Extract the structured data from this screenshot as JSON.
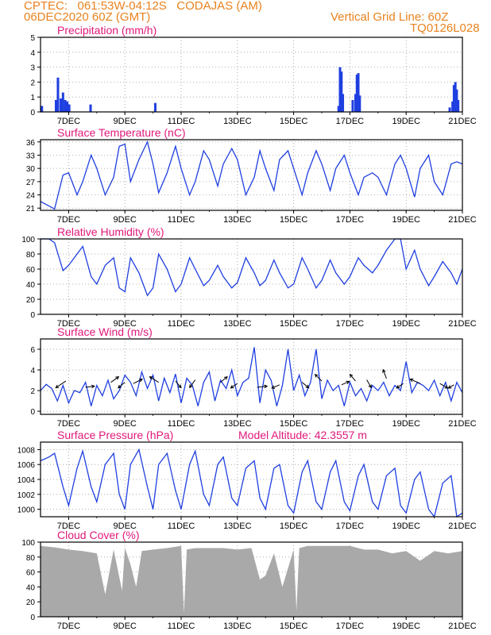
{
  "header": {
    "line1": "CPTEC:   061:53W-04:12S   CODAJAS (AM)",
    "line2": "06DEC2020 60Z (GMT)",
    "grid_note": "Vertical Grid Line: 60Z",
    "code": "TQ0126L028"
  },
  "colors": {
    "header": "#e8821e",
    "title": "#e0187a",
    "series": "#1f3fe0",
    "cloud": "#a9a9a9",
    "arrow": "#000000"
  },
  "x_axis": {
    "start_day": 6.0,
    "end_day": 21.0,
    "tick_labels": [
      "7DEC",
      "9DEC",
      "11DEC",
      "13DEC",
      "15DEC",
      "17DEC",
      "19DEC",
      "21DEC"
    ],
    "tick_days": [
      7,
      9,
      11,
      13,
      15,
      17,
      19,
      21
    ]
  },
  "chart_data": [
    {
      "type": "bar",
      "title": "Precipitation (mm/h)",
      "ylim": [
        0,
        5
      ],
      "yticks": [
        0,
        1,
        2,
        3,
        4,
        5
      ],
      "x": [
        6.05,
        6.55,
        6.62,
        6.72,
        6.8,
        6.88,
        6.95,
        7.02,
        7.78,
        10.08,
        16.6,
        16.65,
        16.7,
        16.75,
        17.1,
        17.2,
        17.25,
        17.3,
        17.35,
        20.55,
        20.65,
        20.7,
        20.75,
        20.8,
        20.85
      ],
      "values": [
        0.4,
        0.8,
        2.3,
        0.9,
        1.3,
        0.8,
        0.7,
        0.5,
        0.5,
        0.6,
        0.4,
        3.0,
        2.7,
        1.2,
        0.8,
        1.2,
        2.5,
        2.6,
        1.1,
        0.3,
        0.7,
        1.8,
        2.0,
        1.5,
        0.8
      ]
    },
    {
      "type": "line",
      "title": "Surface Temperature (nC)",
      "ylim": [
        20.5,
        36.5
      ],
      "yticks": [
        21,
        24,
        27,
        30,
        33,
        36
      ],
      "x": [
        6.0,
        6.3,
        6.5,
        6.8,
        7.0,
        7.3,
        7.5,
        7.8,
        8.0,
        8.3,
        8.6,
        8.8,
        9.0,
        9.2,
        9.5,
        9.8,
        10.0,
        10.2,
        10.5,
        10.8,
        11.0,
        11.3,
        11.5,
        11.8,
        12.0,
        12.3,
        12.5,
        12.8,
        13.0,
        13.3,
        13.6,
        13.8,
        14.0,
        14.3,
        14.5,
        14.8,
        15.0,
        15.3,
        15.5,
        15.8,
        16.0,
        16.3,
        16.5,
        16.8,
        17.0,
        17.3,
        17.5,
        17.8,
        18.0,
        18.3,
        18.6,
        18.8,
        19.0,
        19.3,
        19.5,
        19.8,
        20.0,
        20.3,
        20.6,
        20.8,
        21.0
      ],
      "values": [
        22.5,
        21.5,
        20.8,
        28.5,
        29.0,
        24.0,
        27.0,
        33.0,
        30.0,
        24.0,
        28.0,
        35.0,
        35.5,
        27.0,
        32.0,
        36.0,
        31.0,
        24.5,
        29.0,
        35.0,
        30.0,
        24.0,
        27.0,
        34.0,
        32.0,
        26.0,
        31.0,
        34.5,
        32.0,
        24.0,
        28.0,
        34.0,
        30.0,
        25.0,
        32.0,
        34.0,
        30.0,
        24.0,
        29.0,
        34.0,
        31.0,
        25.0,
        30.0,
        33.0,
        29.0,
        24.0,
        28.0,
        29.0,
        28.0,
        24.0,
        31.0,
        33.0,
        30.0,
        23.5,
        30.0,
        33.0,
        27.0,
        24.0,
        31.0,
        31.5,
        31.0
      ]
    },
    {
      "type": "line",
      "title": "Relative Humidity (%)",
      "ylim": [
        0,
        100
      ],
      "yticks": [
        0,
        20,
        40,
        60,
        80,
        100
      ],
      "x": [
        6.0,
        6.3,
        6.5,
        6.8,
        7.0,
        7.3,
        7.5,
        7.8,
        8.0,
        8.3,
        8.6,
        8.8,
        9.0,
        9.2,
        9.5,
        9.8,
        10.0,
        10.2,
        10.5,
        10.8,
        11.0,
        11.3,
        11.5,
        11.8,
        12.0,
        12.3,
        12.5,
        12.8,
        13.0,
        13.3,
        13.6,
        13.8,
        14.0,
        14.3,
        14.5,
        14.8,
        15.0,
        15.3,
        15.5,
        15.8,
        16.0,
        16.3,
        16.5,
        16.8,
        17.0,
        17.3,
        17.5,
        17.8,
        18.0,
        18.3,
        18.6,
        18.8,
        19.0,
        19.3,
        19.5,
        19.8,
        20.0,
        20.3,
        20.6,
        20.8,
        21.0
      ],
      "values": [
        100,
        100,
        95,
        58,
        65,
        80,
        90,
        50,
        40,
        65,
        75,
        35,
        30,
        75,
        55,
        25,
        35,
        80,
        60,
        30,
        40,
        75,
        60,
        38,
        45,
        65,
        50,
        35,
        42,
        75,
        55,
        38,
        45,
        72,
        55,
        35,
        40,
        75,
        60,
        35,
        45,
        72,
        55,
        40,
        50,
        75,
        65,
        55,
        65,
        85,
        100,
        100,
        60,
        85,
        60,
        38,
        50,
        70,
        55,
        40,
        60
      ]
    },
    {
      "type": "line",
      "title": "Surface Wind (m/s)",
      "ylim": [
        -0.3,
        7
      ],
      "yticks": [
        0,
        2,
        4,
        6
      ],
      "x": [
        6.0,
        6.2,
        6.4,
        6.6,
        6.8,
        7.0,
        7.2,
        7.4,
        7.6,
        7.8,
        8.0,
        8.2,
        8.4,
        8.6,
        8.8,
        9.0,
        9.2,
        9.4,
        9.6,
        9.8,
        10.0,
        10.2,
        10.4,
        10.6,
        10.8,
        11.0,
        11.2,
        11.4,
        11.6,
        11.8,
        12.0,
        12.2,
        12.4,
        12.6,
        12.8,
        13.0,
        13.2,
        13.4,
        13.6,
        13.8,
        14.0,
        14.2,
        14.4,
        14.6,
        14.8,
        15.0,
        15.2,
        15.4,
        15.6,
        15.8,
        16.0,
        16.2,
        16.4,
        16.6,
        16.8,
        17.0,
        17.2,
        17.4,
        17.6,
        17.8,
        18.0,
        18.2,
        18.4,
        18.6,
        18.8,
        19.0,
        19.2,
        19.4,
        19.6,
        19.8,
        20.0,
        20.2,
        20.4,
        20.6,
        20.8,
        21.0
      ],
      "values": [
        2.0,
        2.6,
        2.2,
        1.0,
        2.5,
        0.8,
        2.0,
        1.8,
        2.8,
        0.5,
        2.5,
        1.5,
        3.0,
        1.2,
        2.0,
        3.5,
        2.8,
        1.5,
        3.8,
        2.2,
        3.5,
        1.0,
        3.2,
        1.8,
        3.6,
        0.8,
        3.2,
        2.5,
        0.5,
        2.8,
        3.8,
        1.0,
        3.0,
        2.2,
        4.0,
        1.5,
        2.8,
        3.2,
        6.2,
        0.8,
        4.0,
        3.0,
        0.5,
        2.5,
        6.0,
        2.0,
        3.5,
        1.5,
        2.8,
        6.0,
        1.2,
        3.0,
        2.0,
        2.5,
        0.5,
        2.8,
        1.5,
        2.2,
        1.0,
        2.5,
        2.0,
        2.8,
        1.5,
        2.5,
        2.0,
        4.8,
        1.8,
        2.8,
        2.5,
        2.0,
        3.0,
        1.5,
        2.8,
        1.0,
        2.8,
        1.8
      ],
      "arrows": [
        {
          "day": 6.9,
          "u": -0.9,
          "v": -0.6
        },
        {
          "day": 7.6,
          "u": 0.8,
          "v": 0.1
        },
        {
          "day": 8.5,
          "u": 0.7,
          "v": 0.5
        },
        {
          "day": 9.0,
          "u": -0.6,
          "v": -0.5
        },
        {
          "day": 9.3,
          "u": 0.8,
          "v": 0.4
        },
        {
          "day": 10.2,
          "u": -0.8,
          "v": 0.5
        },
        {
          "day": 10.8,
          "u": 0.5,
          "v": -0.6
        },
        {
          "day": 11.5,
          "u": -0.5,
          "v": -0.7
        },
        {
          "day": 12.4,
          "u": 0.6,
          "v": 0.5
        },
        {
          "day": 13.0,
          "u": -0.6,
          "v": -0.4
        },
        {
          "day": 13.7,
          "u": 0.9,
          "v": 0.1
        },
        {
          "day": 14.5,
          "u": -0.7,
          "v": -0.3
        },
        {
          "day": 15.3,
          "u": 0.6,
          "v": -0.5
        },
        {
          "day": 16.0,
          "u": -0.6,
          "v": 0.6
        },
        {
          "day": 16.7,
          "u": 0.7,
          "v": 0.3
        },
        {
          "day": 17.2,
          "u": -0.5,
          "v": 0.6
        },
        {
          "day": 17.6,
          "u": 0.4,
          "v": -0.7
        },
        {
          "day": 18.3,
          "u": -0.3,
          "v": 0.8
        },
        {
          "day": 18.9,
          "u": -0.6,
          "v": -0.4
        },
        {
          "day": 19.5,
          "u": -0.9,
          "v": 0.4
        },
        {
          "day": 20.2,
          "u": 0.7,
          "v": -0.4
        },
        {
          "day": 20.7,
          "u": -0.5,
          "v": -0.3
        }
      ]
    },
    {
      "type": "line",
      "title": "Surface Pressure (hPa)",
      "annotation": "Model Altitude: 42.3557 m",
      "ylim": [
        999,
        1009
      ],
      "yticks": [
        1000,
        1002,
        1004,
        1006,
        1008
      ],
      "x": [
        6.0,
        6.3,
        6.5,
        6.8,
        7.0,
        7.3,
        7.5,
        7.8,
        8.0,
        8.3,
        8.6,
        8.8,
        9.0,
        9.2,
        9.5,
        9.8,
        10.0,
        10.2,
        10.5,
        10.8,
        11.0,
        11.3,
        11.5,
        11.8,
        12.0,
        12.3,
        12.5,
        12.8,
        13.0,
        13.3,
        13.6,
        13.8,
        14.0,
        14.3,
        14.5,
        14.8,
        15.0,
        15.3,
        15.5,
        15.8,
        16.0,
        16.3,
        16.5,
        16.8,
        17.0,
        17.3,
        17.5,
        17.8,
        18.0,
        18.3,
        18.6,
        18.8,
        19.0,
        19.3,
        19.5,
        19.8,
        20.0,
        20.3,
        20.6,
        20.8,
        21.0
      ],
      "values": [
        1006.5,
        1007.0,
        1007.5,
        1003.0,
        1000.5,
        1005.5,
        1007.8,
        1003.0,
        1001.0,
        1006.0,
        1007.5,
        1002.0,
        1000.0,
        1006.0,
        1008.0,
        1003.0,
        1000.0,
        1006.0,
        1007.5,
        1002.5,
        1000.0,
        1006.0,
        1007.8,
        1002.0,
        1000.5,
        1006.0,
        1007.0,
        1001.5,
        1000.5,
        1005.5,
        1006.5,
        1001.5,
        1000.0,
        1005.5,
        1006.0,
        1000.5,
        999.5,
        1005.0,
        1006.5,
        1001.0,
        1000.0,
        1005.0,
        1006.5,
        1001.0,
        999.8,
        1004.5,
        1006.0,
        1001.0,
        1000.0,
        1004.5,
        1005.5,
        1000.5,
        999.5,
        1004.0,
        1005.0,
        1000.0,
        999.0,
        1003.5,
        1004.5,
        999.0,
        999.5
      ]
    },
    {
      "type": "area",
      "title": "Cloud Cover (%)",
      "ylim": [
        0,
        100
      ],
      "yticks": [
        0,
        20,
        40,
        60,
        80,
        100
      ],
      "x": [
        6.0,
        6.5,
        7.0,
        7.5,
        8.0,
        8.3,
        8.6,
        8.9,
        9.0,
        9.2,
        9.4,
        9.6,
        10.0,
        10.5,
        11.0,
        11.1,
        11.2,
        11.5,
        12.0,
        12.5,
        13.0,
        13.5,
        13.8,
        14.0,
        14.3,
        14.6,
        15.0,
        15.1,
        15.2,
        15.5,
        16.0,
        16.5,
        17.0,
        17.5,
        18.0,
        18.5,
        19.0,
        19.5,
        20.0,
        20.5,
        21.0
      ],
      "values": [
        95,
        93,
        90,
        88,
        85,
        30,
        90,
        35,
        92,
        70,
        40,
        88,
        90,
        92,
        95,
        5,
        90,
        92,
        92,
        92,
        90,
        92,
        50,
        55,
        85,
        40,
        90,
        8,
        92,
        95,
        95,
        95,
        95,
        90,
        90,
        85,
        88,
        75,
        88,
        85,
        88
      ]
    }
  ]
}
